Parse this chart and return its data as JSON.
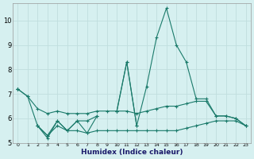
{
  "xlabel": "Humidex (Indice chaleur)",
  "x_values": [
    0,
    1,
    2,
    3,
    4,
    5,
    6,
    7,
    8,
    9,
    10,
    11,
    12,
    13,
    14,
    15,
    16,
    17,
    18,
    19,
    20,
    21,
    22,
    23
  ],
  "series": [
    {
      "y": [
        7.2,
        6.9,
        6.4,
        6.2,
        6.3,
        6.2,
        6.2,
        6.2,
        6.3,
        6.3,
        6.3,
        6.3,
        6.2,
        6.3,
        6.4,
        6.5,
        6.5,
        6.6,
        6.7,
        6.7,
        6.1,
        6.1,
        6.0,
        5.7
      ],
      "mask": [
        1,
        1,
        1,
        1,
        1,
        1,
        1,
        1,
        1,
        1,
        1,
        1,
        1,
        1,
        1,
        1,
        1,
        1,
        1,
        1,
        1,
        1,
        1,
        1
      ]
    },
    {
      "y": [
        7.2,
        null,
        5.7,
        5.3,
        5.9,
        5.5,
        5.9,
        5.4,
        6.1,
        null,
        6.3,
        8.3,
        5.7,
        null,
        null,
        null,
        null,
        null,
        null,
        null,
        null,
        null,
        null,
        null
      ],
      "mask": [
        1,
        0,
        1,
        1,
        1,
        1,
        1,
        1,
        1,
        0,
        1,
        1,
        1,
        0,
        0,
        0,
        0,
        0,
        0,
        0,
        0,
        0,
        0,
        0
      ]
    },
    {
      "y": [
        7.2,
        null,
        5.7,
        5.2,
        5.9,
        5.5,
        5.9,
        5.9,
        6.1,
        null,
        6.3,
        8.3,
        5.7,
        7.3,
        9.3,
        10.5,
        9.0,
        8.3,
        6.8,
        6.8,
        6.1,
        6.1,
        6.0,
        5.7
      ],
      "mask": [
        1,
        0,
        1,
        1,
        1,
        1,
        1,
        1,
        1,
        0,
        1,
        1,
        1,
        1,
        1,
        1,
        1,
        1,
        1,
        1,
        1,
        1,
        1,
        1
      ]
    },
    {
      "y": [
        7.2,
        6.9,
        5.7,
        5.3,
        5.7,
        5.5,
        5.5,
        5.4,
        5.5,
        5.5,
        5.5,
        5.5,
        5.5,
        5.5,
        5.5,
        5.5,
        5.5,
        5.6,
        5.7,
        5.8,
        5.9,
        5.9,
        5.9,
        5.7
      ],
      "mask": [
        1,
        1,
        1,
        1,
        1,
        1,
        1,
        1,
        1,
        1,
        1,
        1,
        1,
        1,
        1,
        1,
        1,
        1,
        1,
        1,
        1,
        1,
        1,
        1
      ]
    }
  ],
  "line_color": "#1a7a6a",
  "bg_color": "#d6f0f0",
  "grid_color": "#c0dede",
  "ylim": [
    5.0,
    10.7
  ],
  "yticks": [
    5,
    6,
    7,
    8,
    9,
    10
  ],
  "figsize": [
    3.2,
    2.0
  ],
  "dpi": 100
}
